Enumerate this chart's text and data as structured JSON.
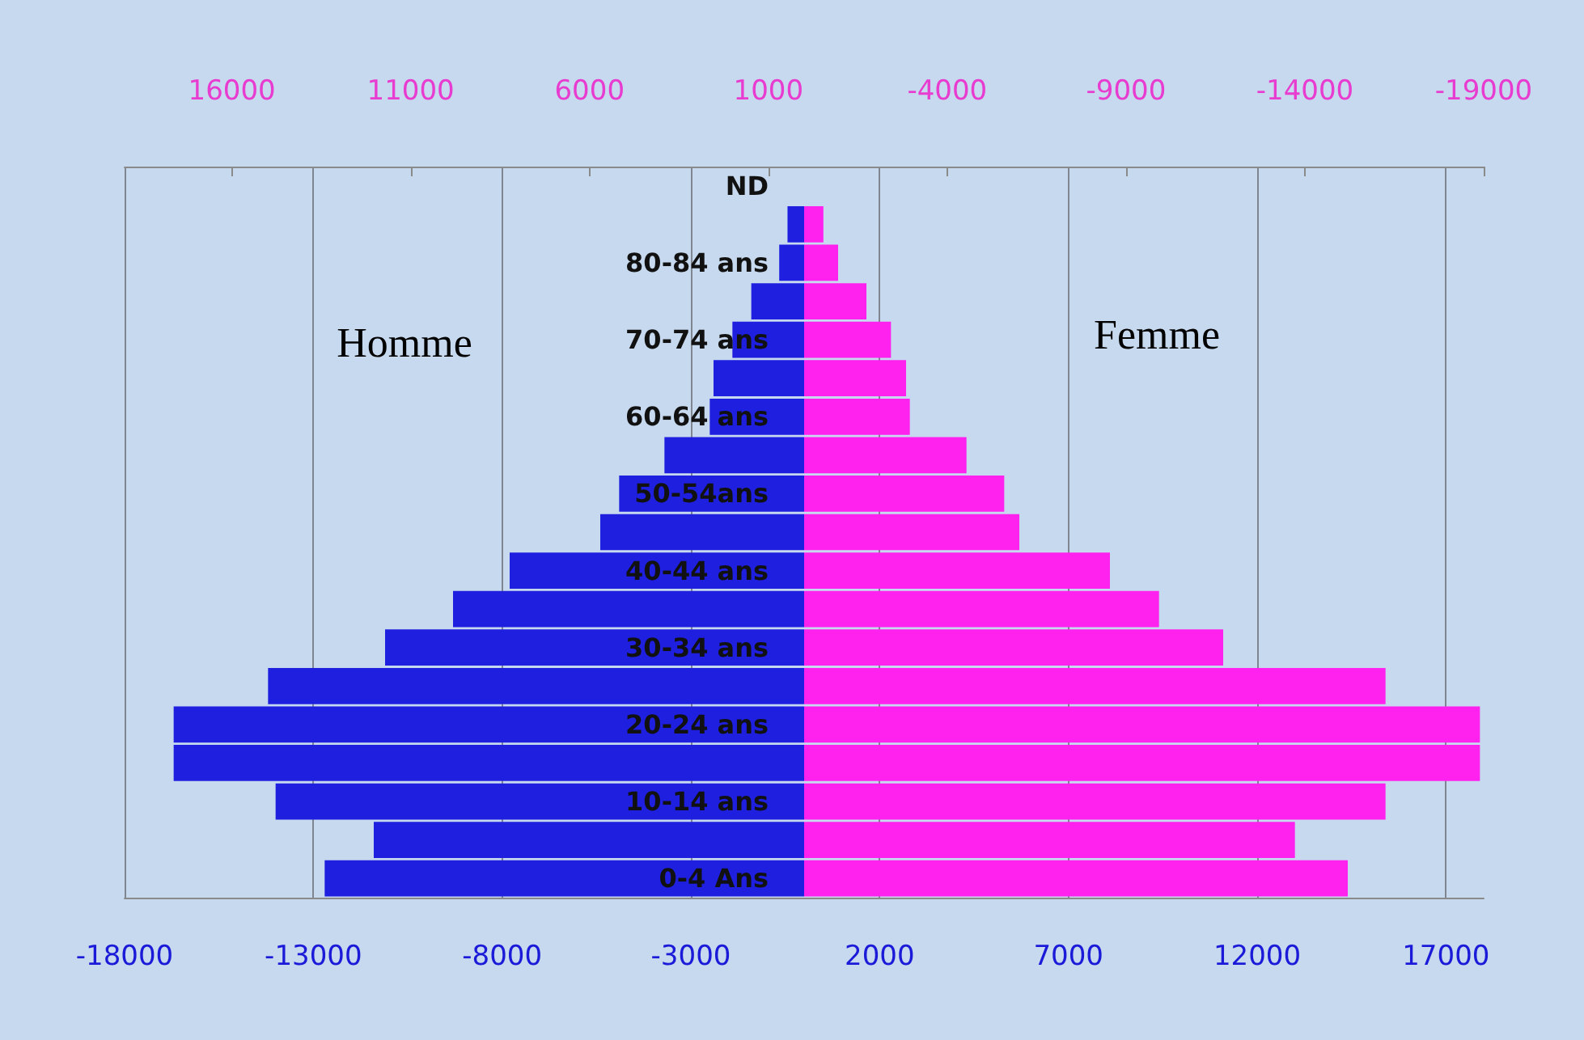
{
  "chart_data": {
    "type": "bar",
    "orientation": "horizontal",
    "categories": [
      "ND",
      null,
      "80-84 ans",
      null,
      "70-74 ans",
      null,
      "60-64 ans",
      null,
      "50-54ans",
      null,
      "40-44 ans",
      null,
      "30-34 ans",
      null,
      "20-24 ans",
      null,
      "10-14 ans",
      null,
      "0-4 Ans"
    ],
    "series": [
      {
        "color": "#1f1fe0",
        "values": [
          0,
          -440,
          -660,
          -1400,
          -1900,
          -2400,
          -2500,
          -3700,
          -4900,
          -5400,
          -7800,
          -9300,
          -11100,
          -14200,
          -16700,
          -16700,
          -14000,
          -11400,
          -12700
        ]
      },
      {
        "color": "#ff22ee",
        "values": [
          0,
          510,
          900,
          1650,
          2300,
          2700,
          2800,
          4300,
          5300,
          5700,
          8100,
          9400,
          11100,
          15400,
          17900,
          17900,
          15400,
          13000,
          14400
        ]
      }
    ],
    "xlim": [
      -18000,
      18000
    ],
    "xticks": [
      -18000,
      -13000,
      -8000,
      -3000,
      2000,
      7000,
      12000,
      17000
    ],
    "x2lim": [
      19000,
      -19000
    ],
    "x2ticks": [
      16000,
      11000,
      6000,
      1000,
      -4000,
      -9000,
      -14000,
      -19000
    ],
    "grid": "x",
    "stacked": true,
    "annotations": [
      "Homme",
      "Femme"
    ]
  }
}
